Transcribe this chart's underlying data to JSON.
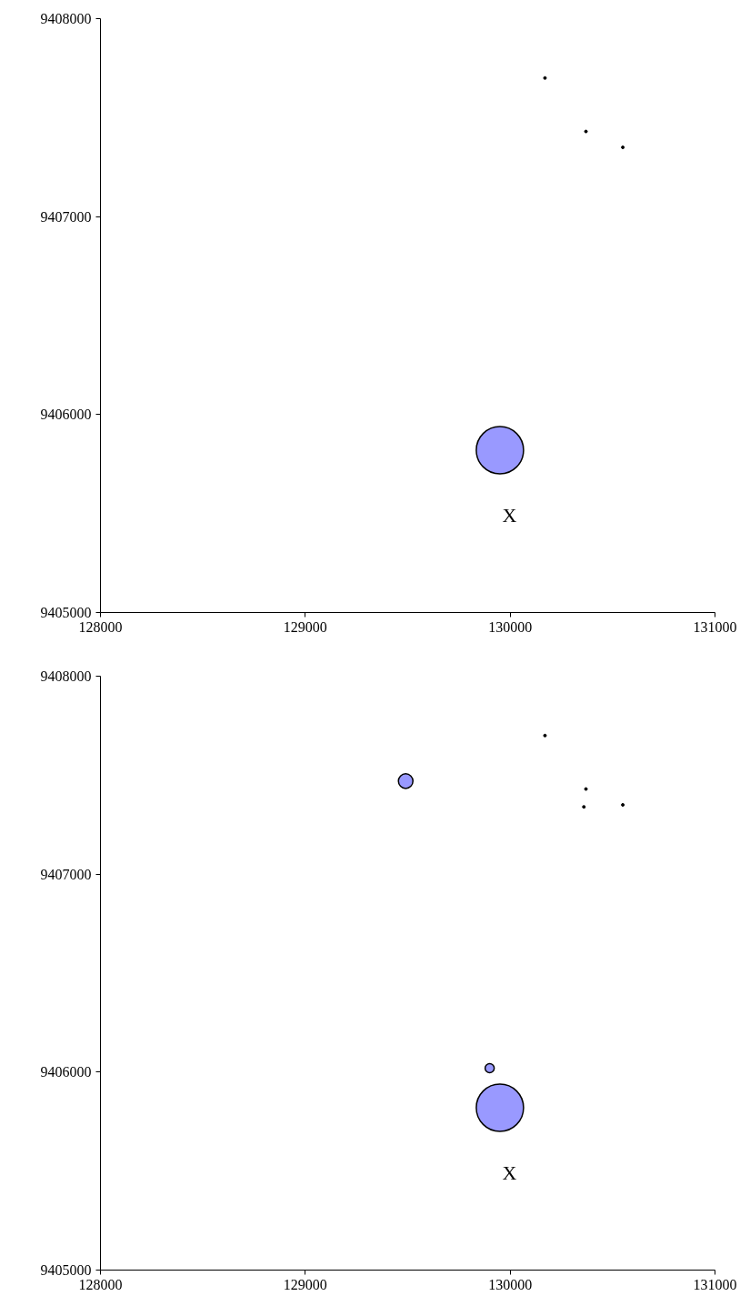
{
  "chart_data": [
    {
      "type": "bubble",
      "xlim": [
        128000,
        131000
      ],
      "xticks": [
        128000,
        129000,
        130000,
        131000
      ],
      "ylim": [
        9405000,
        9408000
      ],
      "yticks": [
        9405000,
        9406000,
        9407000,
        9408000
      ],
      "grid": false,
      "series": [
        {
          "color": "#9999ff",
          "x": [
            129950
          ],
          "values": [
            9405820
          ],
          "sizes": [
            1
          ]
        },
        {
          "type": "scatter",
          "color": "#000000",
          "marker": "circle",
          "x": [
            130170,
            130370,
            130550
          ],
          "values": [
            9407700,
            9407430,
            9407350
          ]
        }
      ],
      "annotations": [
        "X"
      ]
    },
    {
      "type": "bubble",
      "xlim": [
        128000,
        131000
      ],
      "xticks": [
        128000,
        129000,
        130000,
        131000
      ],
      "ylim": [
        9405000,
        9408000
      ],
      "yticks": [
        9405000,
        9406000,
        9407000,
        9408000
      ],
      "grid": false,
      "series": [
        {
          "color": "#9999ff",
          "x": [
            129490,
            129900,
            129950
          ],
          "values": [
            9407470,
            9406020,
            9405820
          ],
          "sizes": [
            0.095,
            0.037,
            1
          ]
        },
        {
          "type": "scatter",
          "color": "#000000",
          "marker": "circle",
          "x": [
            130170,
            130370,
            130360,
            130550
          ],
          "values": [
            9407700,
            9407430,
            9407340,
            9407350
          ]
        }
      ],
      "annotations": [
        "X"
      ]
    }
  ]
}
